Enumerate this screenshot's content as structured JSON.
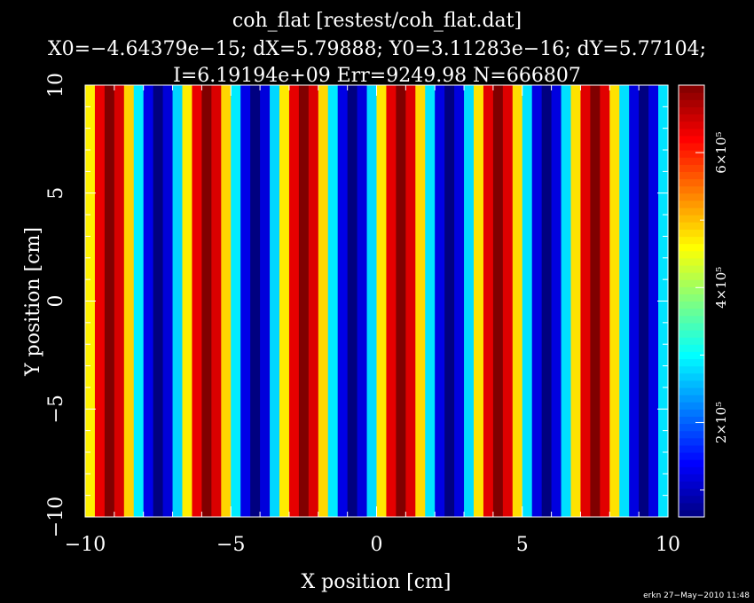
{
  "chart_data": {
    "type": "heatmap",
    "title": "coh_flat [restest/coh_flat.dat]",
    "subtitle_lines": [
      "X0=−4.64379e−15; dX=5.79888; Y0=3.11283e−16; dY=5.77104;",
      "I=6.19194e+09 Err=9249.98 N=666807"
    ],
    "xlabel": "X position [cm]",
    "ylabel": "Y position [cm]",
    "xlim": [
      -10,
      10
    ],
    "ylim": [
      -10,
      10
    ],
    "x_ticks": [
      -10,
      -5,
      0,
      5,
      10
    ],
    "x_tick_labels": [
      "−10",
      "−5",
      "0",
      "5",
      "10"
    ],
    "y_ticks": [
      -10,
      -5,
      0,
      5,
      10
    ],
    "y_tick_labels": [
      "−10",
      "−5",
      "0",
      "5",
      "10"
    ],
    "colorbar": {
      "range": [
        60000,
        700000
      ],
      "ticks": [
        200000,
        400000,
        600000
      ],
      "tick_labels": [
        "2×10⁵",
        "4×10⁵",
        "6×10⁵"
      ],
      "colormap": "jet"
    },
    "pattern": {
      "description_values": "intensity varies along X only, constant along Y",
      "num_columns": 60,
      "min_value": 60000,
      "max_value": 700000,
      "period_cm": 3.33,
      "peak_x_cm": 0.84
    },
    "footer": "erkn 27−May−2010 11:48"
  }
}
